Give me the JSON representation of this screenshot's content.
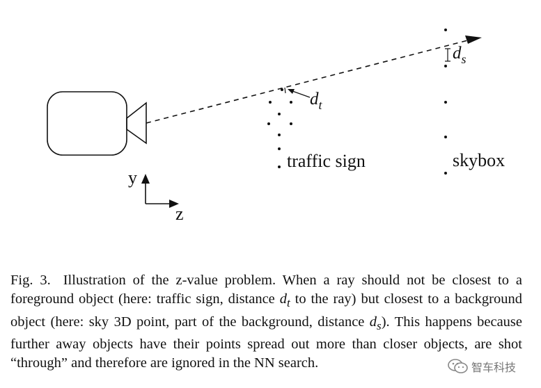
{
  "figure": {
    "labels": {
      "d_t_main": "d",
      "d_t_sub": "t",
      "d_s_main": "d",
      "d_s_sub": "s",
      "traffic_sign": "traffic sign",
      "skybox": "skybox",
      "axis_y": "y",
      "axis_z": "z"
    },
    "colors": {
      "ink": "#111111"
    }
  },
  "caption": {
    "fig_ref": "Fig. 3.",
    "part1": "Illustration of the z-value problem. When a ray should not be closest to a foreground object (here: traffic sign, distance ",
    "d_t_main": "d",
    "d_t_sub": "t",
    "part2": " to the ray) but closest to a background object (here: sky 3D point, part of the background, distance ",
    "d_s_main": "d",
    "d_s_sub": "s",
    "part3": "). This happens because further away objects have their points spread out more than closer objects, are shot “through” and therefore are ignored in the NN search."
  },
  "watermark": {
    "text": "智车科技",
    "icon": "wechat-logo-icon"
  }
}
